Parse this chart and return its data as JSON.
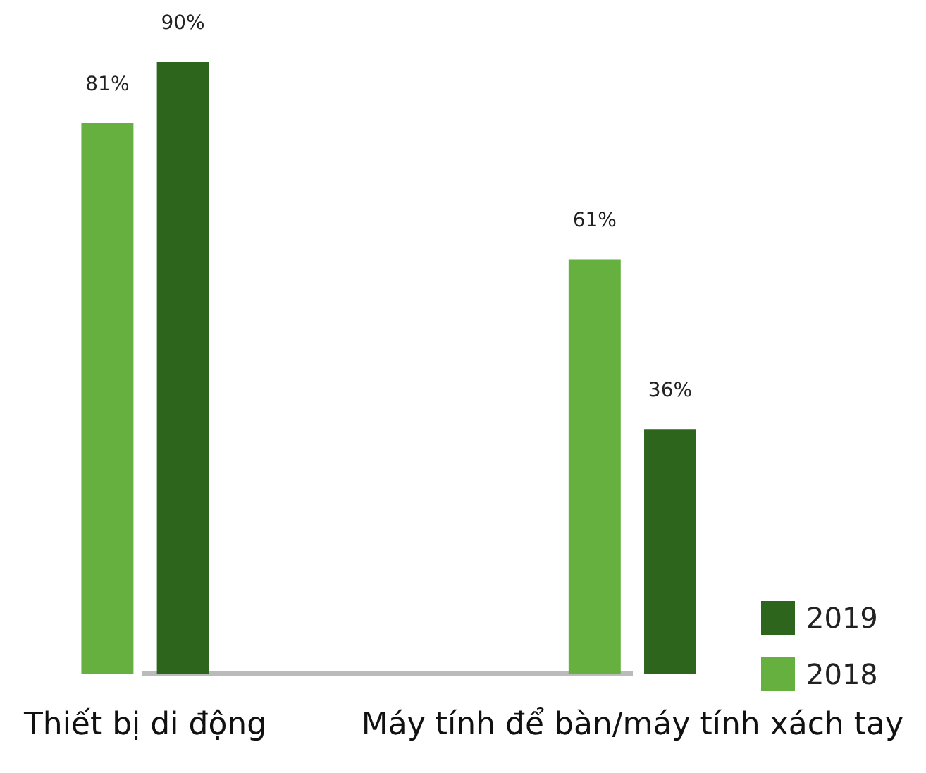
{
  "chart_data": {
    "type": "bar",
    "categories": [
      "Thiết bị di động",
      "Máy tính để bàn/máy tính xách tay"
    ],
    "series": [
      {
        "name": "2018",
        "color": "#65b03f",
        "values": [
          81,
          61
        ],
        "value_labels": [
          "81%",
          "61%"
        ]
      },
      {
        "name": "2019",
        "color": "#2e651d",
        "values": [
          90,
          36
        ],
        "value_labels": [
          "90%",
          "36%"
        ]
      }
    ],
    "legend": "bottom right"
  }
}
